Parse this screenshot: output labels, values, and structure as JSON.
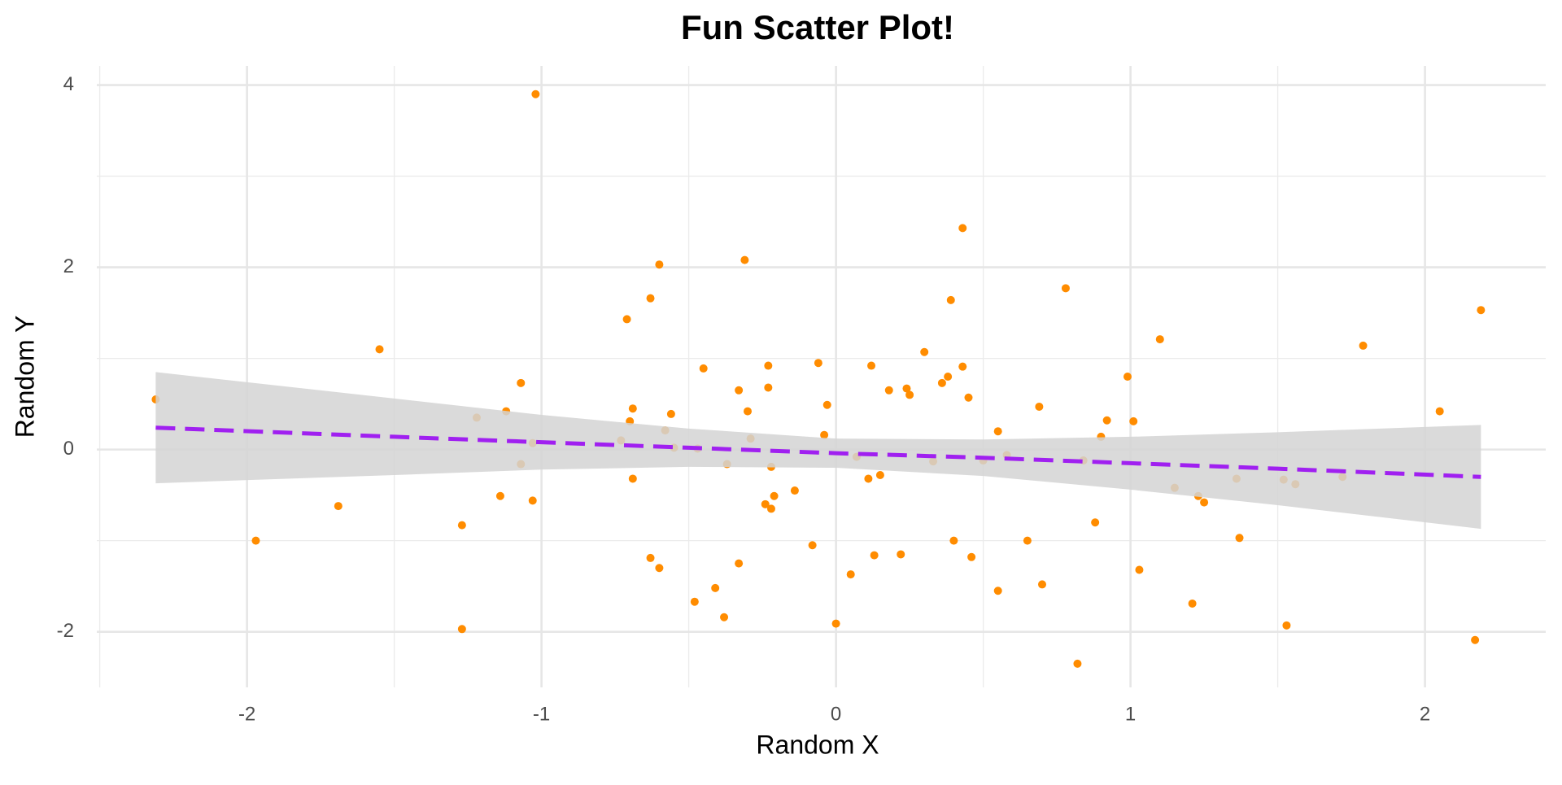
{
  "chart_data": {
    "type": "scatter",
    "title": "Fun Scatter Plot!",
    "x_label": "Random X",
    "y_label": "Random Y",
    "color": "#ff8c00",
    "x": [
      -2.31,
      -1.97,
      -1.69,
      -1.55,
      -1.27,
      -1.27,
      -1.22,
      -1.14,
      -1.12,
      -1.07,
      -1.07,
      -1.03,
      -1.03,
      -1.02,
      -0.73,
      -0.71,
      -0.7,
      -0.69,
      -0.69,
      -0.63,
      -0.63,
      -0.6,
      -0.56,
      -0.55,
      -0.6,
      -0.58,
      -0.48,
      -0.47,
      -0.45,
      -0.41,
      -0.38,
      -0.37,
      -0.33,
      -0.33,
      -0.31,
      -0.3,
      -0.29,
      -0.24,
      -0.23,
      -0.23,
      -0.22,
      -0.22,
      -0.21,
      -0.14,
      -0.08,
      -0.06,
      -0.04,
      -0.03,
      0.0,
      0.05,
      0.07,
      0.11,
      0.12,
      0.13,
      0.15,
      0.18,
      0.22,
      0.24,
      0.25,
      0.3,
      0.33,
      0.36,
      0.38,
      0.39,
      0.4,
      0.43,
      0.43,
      0.45,
      0.46,
      0.5,
      0.55,
      0.55,
      0.58,
      0.65,
      0.69,
      0.7,
      0.78,
      0.82,
      0.84,
      0.88,
      0.9,
      0.92,
      0.99,
      1.01,
      1.03,
      1.1,
      1.15,
      1.21,
      1.23,
      1.25,
      1.36,
      1.37,
      1.52,
      1.53,
      1.56,
      1.72,
      1.79,
      2.05,
      2.17,
      2.19
    ],
    "values": [
      0.55,
      -1.0,
      -0.62,
      1.1,
      -0.83,
      -1.97,
      0.35,
      -0.51,
      0.42,
      0.73,
      -0.16,
      0.07,
      -0.56,
      3.9,
      0.1,
      1.43,
      0.31,
      0.45,
      -0.32,
      -1.19,
      1.66,
      2.03,
      0.39,
      0.02,
      -1.3,
      0.21,
      -1.67,
      0.01,
      0.89,
      -1.52,
      -1.84,
      -0.16,
      -1.25,
      0.65,
      2.08,
      0.42,
      0.12,
      -0.6,
      0.92,
      0.68,
      -0.19,
      -0.65,
      -0.51,
      -0.45,
      -1.05,
      0.95,
      0.16,
      0.49,
      -1.91,
      -1.37,
      -0.08,
      -0.32,
      0.92,
      -1.16,
      -0.28,
      0.65,
      -1.15,
      0.67,
      0.6,
      1.07,
      -0.13,
      0.73,
      0.8,
      1.64,
      -1.0,
      2.43,
      0.91,
      0.57,
      -1.18,
      -0.12,
      0.2,
      -1.55,
      -0.06,
      -1.0,
      0.47,
      -1.48,
      1.77,
      -2.35,
      -0.12,
      -0.8,
      0.14,
      0.32,
      0.8,
      0.31,
      -1.32,
      1.21,
      -0.42,
      -1.69,
      -0.51,
      -0.58,
      -0.32,
      -0.97,
      -0.33,
      -1.93,
      -0.38,
      -0.3,
      1.14,
      0.42,
      -2.09,
      1.53
    ],
    "fit": {
      "color": "#a020f0",
      "band_color": "#d3d3d3",
      "dashed": true,
      "x": [
        -2.31,
        -1.5,
        -1,
        -0.5,
        0,
        0.5,
        1,
        1.5,
        2.19
      ],
      "values": [
        0.24,
        0.14,
        0.08,
        0.02,
        -0.04,
        -0.09,
        -0.15,
        -0.21,
        -0.3
      ],
      "lower": [
        -0.37,
        -0.28,
        -0.22,
        -0.19,
        -0.2,
        -0.29,
        -0.44,
        -0.61,
        -0.87
      ],
      "upper": [
        0.85,
        0.56,
        0.38,
        0.23,
        0.12,
        0.11,
        0.14,
        0.19,
        0.27
      ]
    },
    "xlim": [
      -2.51,
      2.41
    ],
    "ylim": [
      -2.61,
      4.21
    ],
    "xticks": [
      -2,
      -1,
      0,
      1,
      2
    ],
    "yticks": [
      -2,
      0,
      2,
      4
    ],
    "x_minor_grid": [
      -2.5,
      -1.5,
      -0.5,
      0.5,
      1.5
    ],
    "y_minor_grid": [
      -1,
      1,
      3
    ],
    "grid": true
  }
}
